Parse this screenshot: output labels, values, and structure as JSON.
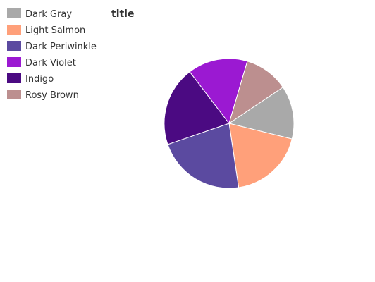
{
  "chart_data": {
    "type": "pie",
    "title": "title",
    "legend_position": "left",
    "series": [
      {
        "name": "Dark Gray",
        "value": 12,
        "color": "#a9a9a9"
      },
      {
        "name": "Light Salmon",
        "value": 17,
        "color": "#ffa07a"
      },
      {
        "name": "Dark Periwinkle",
        "value": 20,
        "color": "#5b4aa0"
      },
      {
        "name": "Dark Violet",
        "value": 13.5,
        "color": "#9b19d2"
      },
      {
        "name": "Indigo",
        "value": 18,
        "color": "#4b0a82"
      },
      {
        "name": "Rosy Brown",
        "value": 10,
        "color": "#bc8f8f"
      }
    ],
    "slice_order": [
      "Dark Gray",
      "Light Salmon",
      "Dark Periwinkle",
      "Indigo",
      "Dark Violet",
      "Rosy Brown"
    ],
    "start_slice": "Dark Gray",
    "direction": "clockwise"
  }
}
